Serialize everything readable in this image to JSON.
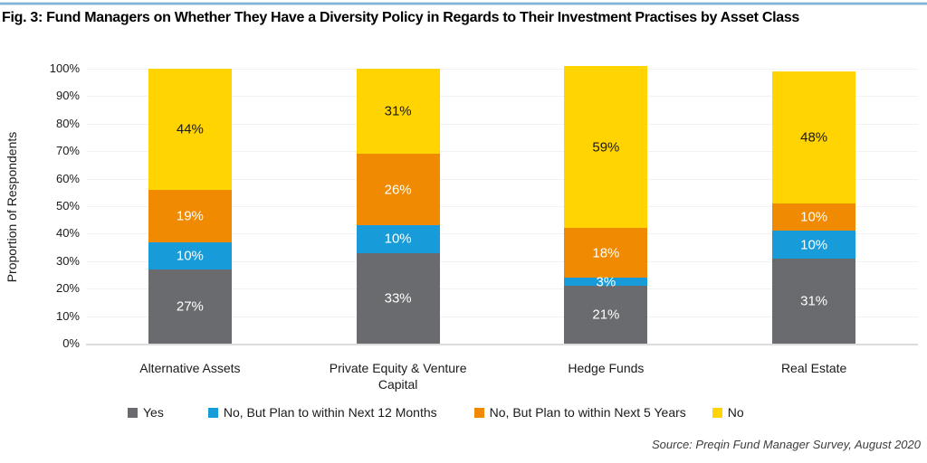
{
  "figure": {
    "title": "Fig. 3: Fund Managers on Whether They Have a Diversity Policy in Regards to Their Investment Practises by Asset Class",
    "source": "Source: Preqin Fund Manager Survey, August 2020",
    "accent_line_color": "#7FB3D8"
  },
  "chart_data": {
    "type": "bar",
    "stacked": true,
    "title": "Fig. 3: Fund Managers on Whether They Have a Diversity Policy in Regards to Their Investment Practises by Asset Class",
    "xlabel": "",
    "ylabel": "Proportion of Respondents",
    "ylim": [
      0,
      100
    ],
    "y_ticks": [
      "0%",
      "10%",
      "20%",
      "30%",
      "40%",
      "50%",
      "60%",
      "70%",
      "80%",
      "90%",
      "100%"
    ],
    "grid": true,
    "legend_position": "bottom",
    "value_suffix": "%",
    "categories": [
      "Alternative Assets",
      "Private Equity & Venture Capital",
      "Hedge Funds",
      "Real Estate"
    ],
    "series": [
      {
        "name": "Yes",
        "color": "#6A6B6E",
        "label_color": "#FFFFFF",
        "values": [
          27,
          33,
          21,
          31
        ]
      },
      {
        "name": "No, But Plan to within Next 12 Months",
        "color": "#189CD9",
        "label_color": "#FFFFFF",
        "values": [
          10,
          10,
          3,
          10
        ]
      },
      {
        "name": "No, But Plan to within Next 5 Years",
        "color": "#F08A00",
        "label_color": "#FFFFFF",
        "values": [
          19,
          26,
          18,
          10
        ]
      },
      {
        "name": "No",
        "color": "#FFD400",
        "label_color": "#1A1A1A",
        "values": [
          44,
          31,
          59,
          48
        ]
      }
    ]
  }
}
